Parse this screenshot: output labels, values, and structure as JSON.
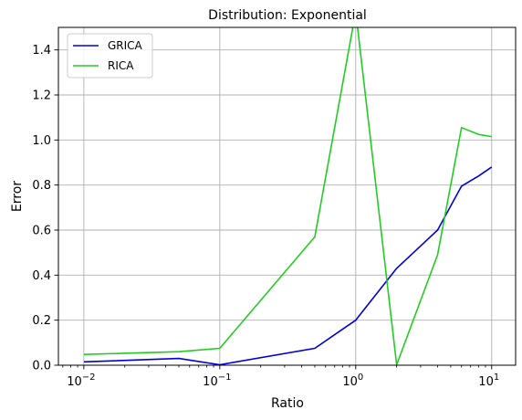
{
  "chart_data": {
    "type": "line",
    "title": "Distribution: Exponential",
    "xlabel": "Ratio",
    "ylabel": "Error",
    "xscale": "log",
    "xlim": [
      0.0065,
      15
    ],
    "ylim": [
      0,
      1.5
    ],
    "x_ticks": [
      {
        "value": 0.01,
        "base": "10",
        "exp": "−2"
      },
      {
        "value": 0.1,
        "base": "10",
        "exp": "−1"
      },
      {
        "value": 1,
        "base": "10",
        "exp": "0"
      },
      {
        "value": 10,
        "base": "10",
        "exp": "1"
      }
    ],
    "y_ticks": [
      {
        "value": 0.0,
        "label": "0.0"
      },
      {
        "value": 0.2,
        "label": "0.2"
      },
      {
        "value": 0.4,
        "label": "0.4"
      },
      {
        "value": 0.6,
        "label": "0.6"
      },
      {
        "value": 0.8,
        "label": "0.8"
      },
      {
        "value": 1.0,
        "label": "1.0"
      },
      {
        "value": 1.2,
        "label": "1.2"
      },
      {
        "value": 1.4,
        "label": "1.4"
      }
    ],
    "grid": true,
    "legend_position": "top-left",
    "series": [
      {
        "name": "GRICA",
        "color": "#0000dd",
        "x": [
          0.01,
          0.05,
          0.1,
          0.5,
          1,
          2,
          4,
          6,
          8,
          10
        ],
        "y": [
          0.015,
          0.03,
          0.002,
          0.075,
          0.2,
          0.43,
          0.6,
          0.795,
          0.84,
          0.88
        ]
      },
      {
        "name": "RICA",
        "color": "#22cc22",
        "x": [
          0.01,
          0.05,
          0.1,
          0.5,
          1,
          2,
          4,
          6,
          8,
          10
        ],
        "y": [
          0.048,
          0.06,
          0.075,
          0.57,
          1.57,
          0.002,
          0.49,
          1.055,
          1.025,
          1.015
        ]
      }
    ]
  }
}
